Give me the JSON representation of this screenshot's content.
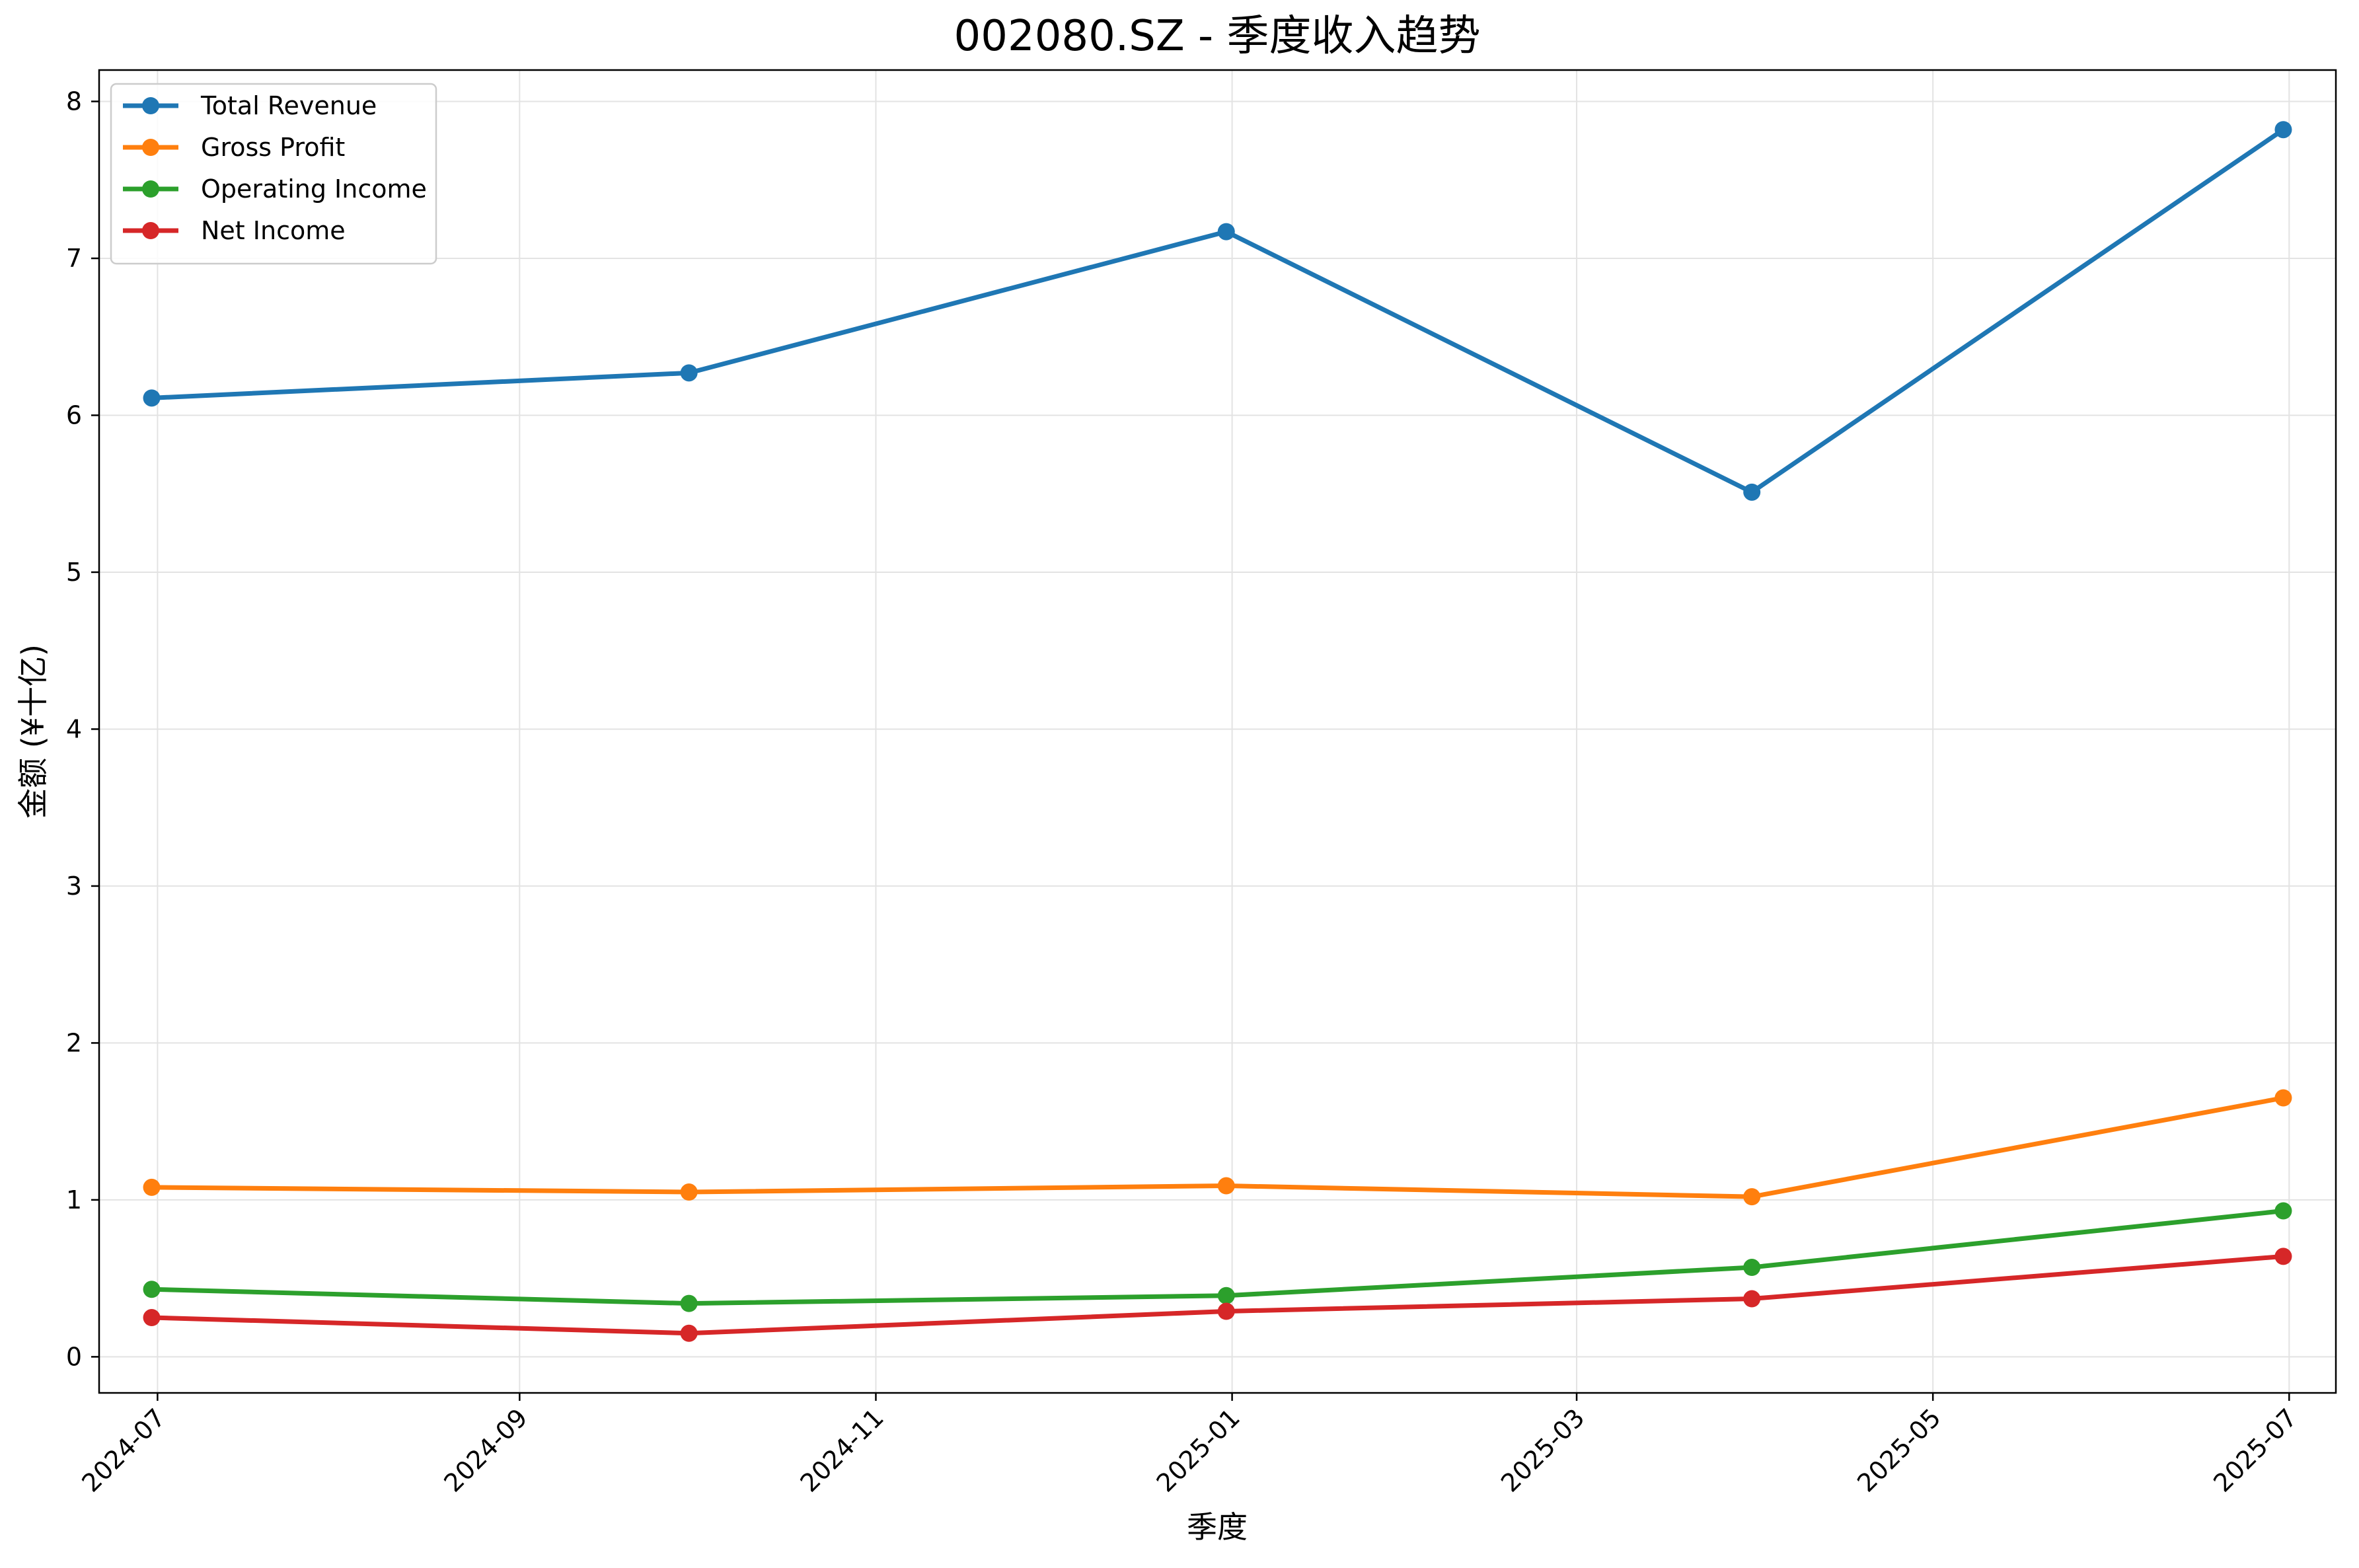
{
  "chart_data": {
    "type": "line",
    "title": "002080.SZ - 季度收入趋势",
    "xlabel": "季度",
    "ylabel": "金额 (¥十亿)",
    "x": [
      "2024-06-30",
      "2024-09-30",
      "2024-12-31",
      "2025-03-31",
      "2025-06-30"
    ],
    "x_ticks": [
      "2024-07",
      "2024-09",
      "2024-11",
      "2025-01",
      "2025-03",
      "2025-05",
      "2025-07"
    ],
    "y_ticks": [
      "0",
      "1",
      "2",
      "3",
      "4",
      "5",
      "6",
      "7",
      "8"
    ],
    "ylim": [
      -0.23,
      8.2
    ],
    "xlim": [
      "2024-06-21",
      "2025-07-09"
    ],
    "grid": true,
    "legend_position": "top-left",
    "series": [
      {
        "name": "Total Revenue",
        "color": "#1f77b4",
        "values": [
          6.11,
          6.27,
          7.17,
          5.51,
          7.82
        ]
      },
      {
        "name": "Gross Profit",
        "color": "#ff7f0e",
        "values": [
          1.08,
          1.05,
          1.09,
          1.02,
          1.65
        ]
      },
      {
        "name": "Operating Income",
        "color": "#2ca02c",
        "values": [
          0.43,
          0.34,
          0.39,
          0.57,
          0.93
        ]
      },
      {
        "name": "Net Income",
        "color": "#d62728",
        "values": [
          0.25,
          0.15,
          0.29,
          0.37,
          0.64
        ]
      }
    ]
  }
}
